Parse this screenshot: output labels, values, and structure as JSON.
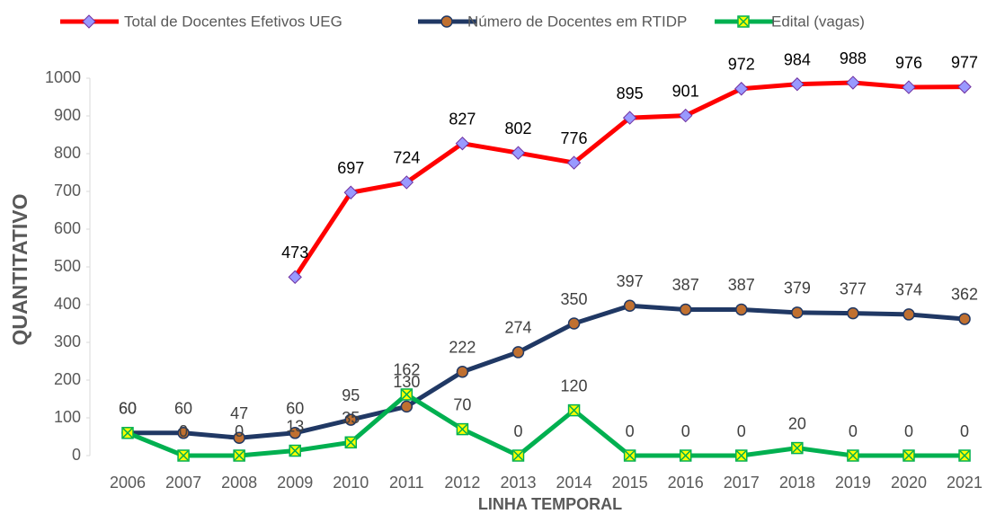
{
  "chart_data": {
    "type": "line",
    "x_label": "LINHA TEMPORAL",
    "y_label": "QUANTITATIVO",
    "categories": [
      "2006",
      "2007",
      "2008",
      "2009",
      "2010",
      "2011",
      "2012",
      "2013",
      "2014",
      "2015",
      "2016",
      "2017",
      "2018",
      "2019",
      "2020",
      "2021"
    ],
    "series": [
      {
        "name": "Total de Docentes Efetivos UEG",
        "color": "#ff0000",
        "marker": "diamond",
        "values": [
          null,
          null,
          null,
          473,
          697,
          724,
          827,
          802,
          776,
          895,
          901,
          972,
          984,
          988,
          976,
          977
        ]
      },
      {
        "name": "Número de Docentes em RTIDP",
        "color": "#203864",
        "marker": "circle",
        "values": [
          60,
          60,
          47,
          60,
          95,
          130,
          222,
          274,
          350,
          397,
          387,
          387,
          379,
          377,
          374,
          362
        ]
      },
      {
        "name": "Edital (vagas)",
        "color": "#00b050",
        "marker": "square",
        "values": [
          60,
          0,
          0,
          13,
          35,
          162,
          70,
          0,
          120,
          0,
          0,
          0,
          20,
          0,
          0,
          0
        ]
      }
    ],
    "ylim": [
      0,
      1000
    ],
    "yticks": [
      0,
      100,
      200,
      300,
      400,
      500,
      600,
      700,
      800,
      900,
      1000
    ],
    "legend": "top"
  }
}
